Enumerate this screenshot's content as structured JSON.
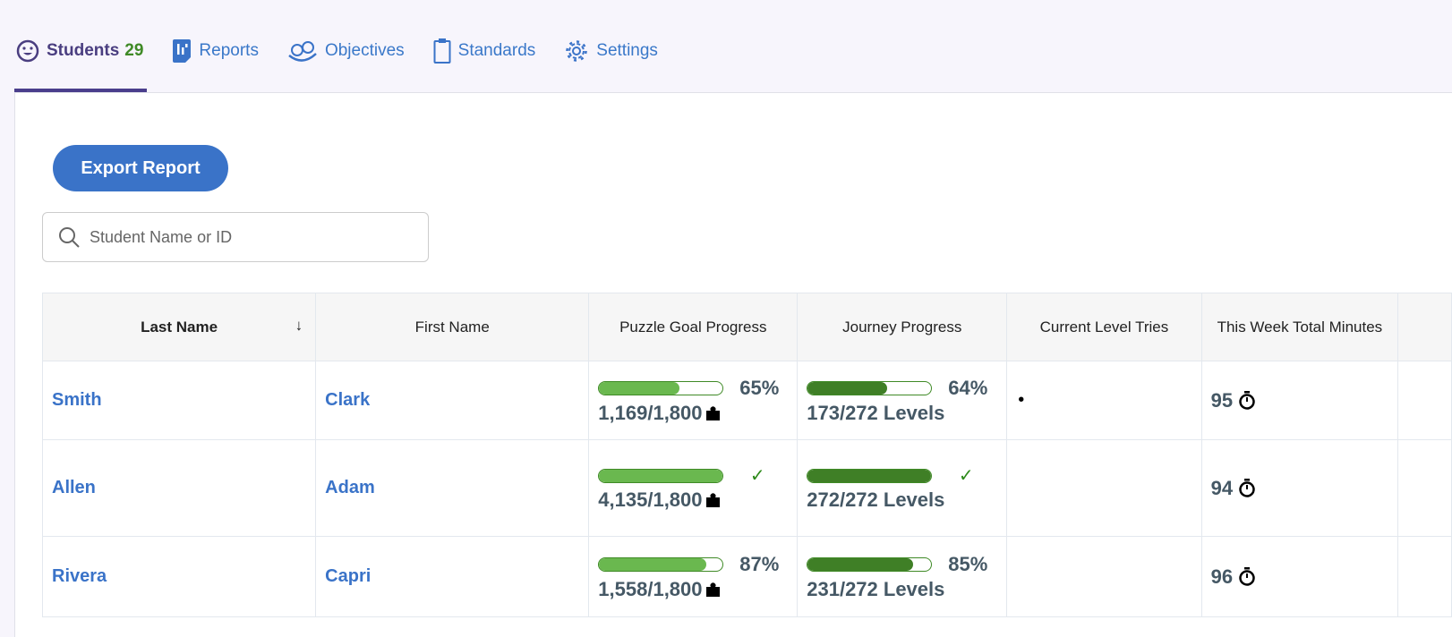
{
  "tabs": [
    {
      "label": "Students",
      "count": "29",
      "icon": "smiley-icon"
    },
    {
      "label": "Reports",
      "icon": "report-icon"
    },
    {
      "label": "Objectives",
      "icon": "objectives-icon"
    },
    {
      "label": "Standards",
      "icon": "clipboard-icon"
    },
    {
      "label": "Settings",
      "icon": "gear-icon"
    }
  ],
  "export_label": "Export Report",
  "search_placeholder": "Student Name or ID",
  "columns": [
    "Last Name",
    "First Name",
    "Puzzle Goal Progress",
    "Journey Progress",
    "Current Level Tries",
    "This Week Total Minutes"
  ],
  "colors": {
    "puzzle": "#6ab84f",
    "journey": "#3f7f26",
    "link": "#3a73c8",
    "accent": "#4a3e8c"
  },
  "rows": [
    {
      "last": "Smith",
      "first": "Clark",
      "puzzle_pct": 65,
      "puzzle_label": "65%",
      "puzzle": "1,169/1,800",
      "journey_pct": 64,
      "journey_label": "64%",
      "journey": "173/272 Levels",
      "tries": "•",
      "minutes": "95"
    },
    {
      "last": "Allen",
      "first": "Adam",
      "puzzle_pct": 100,
      "puzzle_label": "✓",
      "puzzle": "4,135/1,800",
      "journey_pct": 100,
      "journey_label": "✓",
      "journey": "272/272 Levels",
      "tries": "",
      "minutes": "94"
    },
    {
      "last": "Rivera",
      "first": "Capri",
      "puzzle_pct": 87,
      "puzzle_label": "87%",
      "puzzle": "1,558/1,800",
      "journey_pct": 85,
      "journey_label": "85%",
      "journey": "231/272 Levels",
      "tries": "",
      "minutes": "96"
    }
  ]
}
